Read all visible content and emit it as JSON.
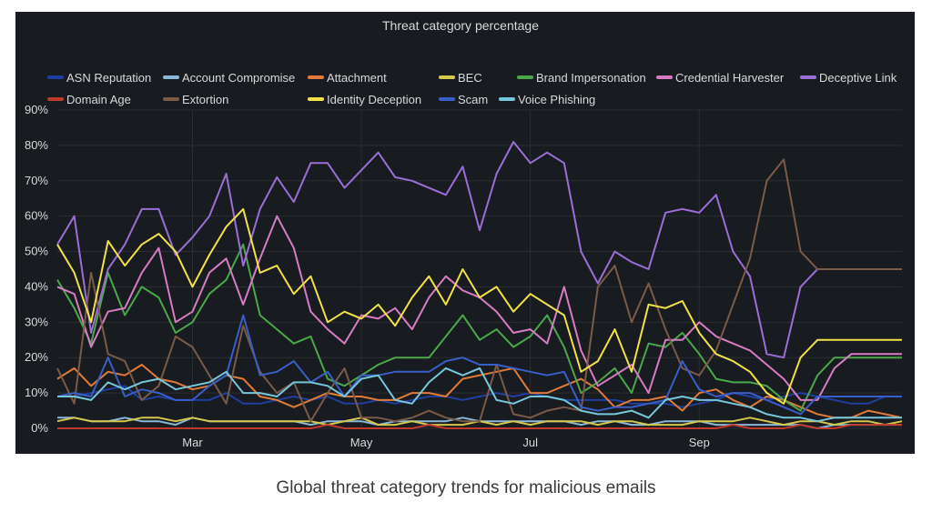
{
  "caption": "Global threat category trends for malicious emails",
  "chart_data": {
    "type": "line",
    "title": "Threat category percentage",
    "xlabel": "",
    "ylabel": "",
    "ylim": [
      0,
      90
    ],
    "yticks": [
      "0%",
      "10%",
      "20%",
      "30%",
      "40%",
      "50%",
      "60%",
      "70%",
      "80%",
      "90%"
    ],
    "xticks": [
      {
        "label": "Mar",
        "at": 8
      },
      {
        "label": "May",
        "at": 18
      },
      {
        "label": "Jul",
        "at": 28
      },
      {
        "label": "Sep",
        "at": 38
      }
    ],
    "grid": true,
    "legend_position": "top",
    "points_per_series": 51,
    "series": [
      {
        "name": "ASN Reputation",
        "color": "#1f3fa0",
        "values": [
          9,
          9,
          10,
          11,
          12,
          8,
          9,
          8,
          8,
          8,
          10,
          7,
          7,
          8,
          9,
          8,
          9,
          7,
          7,
          8,
          7,
          8,
          9,
          9,
          8,
          9,
          10,
          9,
          10,
          9,
          8,
          8,
          8,
          8,
          7,
          7,
          7,
          6,
          7,
          8,
          10,
          9,
          8,
          9,
          10,
          9,
          8,
          7,
          7,
          9,
          9
        ]
      },
      {
        "name": "Account Compromise",
        "color": "#8ab8d8",
        "values": [
          3,
          3,
          2,
          2,
          3,
          2,
          2,
          1,
          3,
          2,
          2,
          2,
          2,
          2,
          2,
          1,
          2,
          2,
          2,
          1,
          2,
          2,
          2,
          2,
          3,
          2,
          2,
          2,
          2,
          2,
          2,
          1,
          2,
          2,
          1,
          1,
          2,
          2,
          2,
          1,
          1,
          1,
          1,
          1,
          1,
          0,
          1,
          1,
          1,
          1,
          1
        ]
      },
      {
        "name": "Attachment",
        "color": "#e07b39",
        "values": [
          14,
          17,
          12,
          16,
          15,
          18,
          14,
          13,
          11,
          12,
          15,
          14,
          9,
          8,
          6,
          8,
          10,
          9,
          9,
          8,
          8,
          10,
          10,
          9,
          14,
          15,
          16,
          17,
          10,
          10,
          12,
          14,
          11,
          6,
          8,
          8,
          9,
          5,
          10,
          11,
          8,
          6,
          9,
          8,
          6,
          4,
          3,
          3,
          5,
          4,
          3
        ]
      },
      {
        "name": "BEC",
        "color": "#d6c84a",
        "values": [
          2,
          3,
          2,
          2,
          2,
          3,
          3,
          2,
          3,
          2,
          2,
          2,
          2,
          2,
          2,
          2,
          1,
          2,
          3,
          1,
          1,
          2,
          1,
          1,
          1,
          2,
          1,
          2,
          1,
          2,
          2,
          2,
          1,
          2,
          2,
          1,
          1,
          1,
          2,
          2,
          2,
          3,
          2,
          1,
          2,
          2,
          1,
          2,
          2,
          1,
          2
        ]
      },
      {
        "name": "Brand Impersonation",
        "color": "#4aa84a",
        "values": [
          42,
          34,
          24,
          44,
          32,
          40,
          37,
          27,
          30,
          38,
          42,
          52,
          32,
          28,
          24,
          26,
          14,
          12,
          15,
          18,
          20,
          20,
          20,
          26,
          32,
          25,
          28,
          23,
          26,
          32,
          23,
          10,
          13,
          17,
          10,
          24,
          23,
          27,
          21,
          14,
          13,
          13,
          12,
          8,
          5,
          15,
          20,
          20,
          20,
          20,
          20
        ]
      },
      {
        "name": "Credential Harvester",
        "color": "#d77cc4",
        "values": [
          40,
          38,
          23,
          33,
          34,
          44,
          51,
          30,
          33,
          44,
          48,
          35,
          48,
          60,
          51,
          33,
          28,
          24,
          32,
          31,
          34,
          28,
          37,
          43,
          39,
          37,
          33,
          27,
          28,
          24,
          40,
          22,
          12,
          15,
          18,
          10,
          25,
          25,
          30,
          26,
          24,
          22,
          18,
          14,
          8,
          8,
          17,
          21,
          21,
          21,
          21
        ]
      },
      {
        "name": "Deceptive Link",
        "color": "#9b6ed6",
        "values": [
          52,
          60,
          27,
          45,
          52,
          62,
          62,
          49,
          54,
          60,
          72,
          46,
          62,
          71,
          64,
          75,
          75,
          68,
          73,
          78,
          71,
          70,
          68,
          66,
          74,
          56,
          72,
          81,
          75,
          78,
          75,
          50,
          41,
          50,
          47,
          45,
          61,
          62,
          61,
          66,
          50,
          43,
          21,
          20,
          40,
          45,
          45,
          45,
          45,
          45,
          45
        ]
      },
      {
        "name": "Domain Age",
        "color": "#c0392b",
        "values": [
          0,
          0,
          0,
          0,
          0,
          0,
          0,
          0,
          0,
          0,
          0,
          0,
          0,
          0,
          0,
          0,
          1,
          0,
          0,
          0,
          0,
          0,
          1,
          0,
          0,
          0,
          0,
          0,
          0,
          0,
          0,
          0,
          0,
          0,
          0,
          0,
          0,
          0,
          0,
          0,
          1,
          0,
          0,
          0,
          1,
          0,
          0,
          1,
          1,
          1,
          1
        ]
      },
      {
        "name": "Extortion",
        "color": "#7a5a48",
        "values": [
          17,
          7,
          44,
          21,
          19,
          8,
          12,
          26,
          23,
          15,
          7,
          29,
          16,
          10,
          13,
          2,
          10,
          17,
          3,
          3,
          2,
          3,
          5,
          3,
          2,
          2,
          18,
          4,
          3,
          5,
          6,
          5,
          40,
          46,
          30,
          41,
          28,
          17,
          15,
          22,
          35,
          48,
          70,
          76,
          50,
          45,
          45,
          45,
          45,
          45,
          45
        ]
      },
      {
        "name": "Identity Deception",
        "color": "#f2e24a",
        "values": [
          52,
          44,
          30,
          53,
          46,
          52,
          55,
          50,
          40,
          49,
          57,
          62,
          44,
          46,
          38,
          43,
          30,
          33,
          31,
          35,
          29,
          37,
          43,
          35,
          45,
          37,
          40,
          33,
          38,
          35,
          32,
          16,
          19,
          28,
          16,
          35,
          34,
          36,
          27,
          21,
          19,
          16,
          10,
          7,
          20,
          25,
          25,
          25,
          25,
          25,
          25
        ]
      },
      {
        "name": "Scam",
        "color": "#3a5ec8",
        "values": [
          9,
          10,
          9,
          20,
          9,
          11,
          10,
          8,
          8,
          12,
          15,
          32,
          15,
          16,
          19,
          13,
          16,
          9,
          15,
          15,
          16,
          16,
          16,
          19,
          20,
          18,
          18,
          17,
          16,
          15,
          16,
          6,
          5,
          6,
          6,
          7,
          8,
          19,
          11,
          9,
          10,
          10,
          8,
          6,
          4,
          9,
          9,
          9,
          9,
          9,
          9
        ]
      },
      {
        "name": "Voice Phishing",
        "color": "#76c6dc",
        "values": [
          9,
          9,
          8,
          13,
          11,
          13,
          14,
          11,
          12,
          13,
          16,
          10,
          10,
          9,
          13,
          13,
          12,
          9,
          14,
          15,
          8,
          7,
          13,
          17,
          15,
          17,
          8,
          7,
          9,
          9,
          8,
          5,
          4,
          4,
          5,
          3,
          8,
          9,
          8,
          8,
          7,
          6,
          4,
          3,
          3,
          2,
          3,
          3,
          3,
          3,
          3
        ]
      }
    ]
  }
}
